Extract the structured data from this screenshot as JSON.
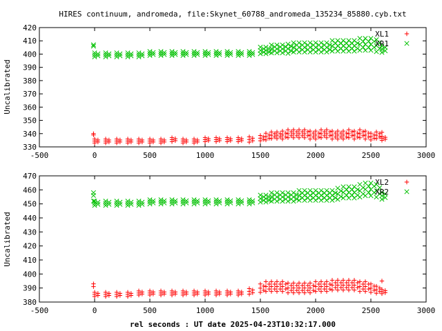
{
  "chart_data": [
    {
      "type": "scatter",
      "title": "HIRES continuum, andromeda, file:Skynet_60788_andromeda_135234_85880.cyb.txt",
      "ylabel": "Uncalibrated",
      "xlabel": "",
      "xlim": [
        -500,
        3000
      ],
      "ylim": [
        330,
        420
      ],
      "xticks": [
        "-500",
        "0",
        "500",
        "1000",
        "1500",
        "2000",
        "2500",
        "3000"
      ],
      "yticks": [
        "330",
        "340",
        "350",
        "360",
        "370",
        "380",
        "390",
        "400",
        "410",
        "420"
      ],
      "grid": false,
      "legend_position": "top-right",
      "series": [
        {
          "name": "XL1",
          "marker": "+",
          "color": "#ff0000",
          "x": [
            -10,
            -10,
            0,
            100,
            200,
            300,
            400,
            500,
            600,
            700,
            800,
            900,
            1000,
            1100,
            1200,
            1300,
            1400,
            1500,
            1550,
            1600,
            1650,
            1700,
            1750,
            1800,
            1850,
            1900,
            1950,
            2000,
            2050,
            2100,
            2150,
            2200,
            2250,
            2300,
            2350,
            2400,
            2450,
            2500,
            2550,
            2600,
            2600
          ],
          "y": [
            340,
            339,
            334,
            334,
            334,
            334,
            334,
            334,
            334,
            335,
            334,
            334,
            335,
            335,
            335,
            335,
            335,
            336,
            337,
            338,
            338,
            338,
            339,
            339,
            339,
            339,
            338,
            338,
            339,
            339,
            338,
            338,
            338,
            339,
            338,
            339,
            338,
            337,
            338,
            341,
            336
          ],
          "y_spread": [
            0,
            0,
            3,
            3,
            3,
            3,
            3,
            3,
            3,
            3,
            3,
            3,
            3,
            3,
            3,
            3,
            4,
            4,
            5,
            5,
            5,
            6,
            6,
            6,
            6,
            6,
            6,
            6,
            6,
            6,
            6,
            6,
            6,
            6,
            6,
            6,
            6,
            5,
            5,
            0,
            3
          ]
        },
        {
          "name": "XR1",
          "marker": "x",
          "color": "#00c000",
          "x": [
            -10,
            -10,
            0,
            100,
            200,
            300,
            400,
            500,
            600,
            700,
            800,
            900,
            1000,
            1100,
            1200,
            1300,
            1400,
            1500,
            1550,
            1600,
            1650,
            1700,
            1750,
            1800,
            1850,
            1900,
            1950,
            2000,
            2050,
            2100,
            2150,
            2200,
            2250,
            2300,
            2350,
            2400,
            2450,
            2500,
            2550,
            2600
          ],
          "y": [
            407,
            406,
            399,
            399,
            399,
            399,
            399,
            400,
            400,
            400,
            400,
            400,
            400,
            400,
            400,
            400,
            400,
            402,
            402,
            403,
            403,
            403,
            403,
            404,
            404,
            404,
            404,
            404,
            404,
            404,
            405,
            405,
            405,
            405,
            405,
            406,
            406,
            406,
            405,
            403
          ],
          "y_spread": [
            0,
            0,
            3,
            3,
            3,
            3,
            3,
            3,
            3,
            3,
            3,
            3,
            3,
            3,
            3,
            3,
            3,
            5,
            5,
            6,
            6,
            6,
            7,
            7,
            7,
            7,
            7,
            7,
            7,
            7,
            8,
            8,
            8,
            8,
            8,
            9,
            9,
            9,
            9,
            5
          ]
        }
      ]
    },
    {
      "type": "scatter",
      "title": "",
      "ylabel": "Uncalibrated",
      "xlabel": "rel seconds : UT date 2025-04-23T10:32:17.000",
      "xlim": [
        -500,
        3000
      ],
      "ylim": [
        380,
        470
      ],
      "xticks": [
        "-500",
        "0",
        "500",
        "1000",
        "1500",
        "2000",
        "2500",
        "3000"
      ],
      "yticks": [
        "380",
        "390",
        "400",
        "410",
        "420",
        "430",
        "440",
        "450",
        "460",
        "470"
      ],
      "grid": false,
      "legend_position": "top-right",
      "series": [
        {
          "name": "XL2",
          "marker": "+",
          "color": "#ff0000",
          "x": [
            -10,
            -10,
            0,
            100,
            200,
            300,
            400,
            500,
            600,
            700,
            800,
            900,
            1000,
            1100,
            1200,
            1300,
            1400,
            1500,
            1550,
            1600,
            1650,
            1700,
            1750,
            1800,
            1850,
            1900,
            1950,
            2000,
            2050,
            2100,
            2150,
            2200,
            2250,
            2300,
            2350,
            2400,
            2450,
            2500,
            2550,
            2600,
            2600
          ],
          "y": [
            393,
            391,
            385,
            385,
            385,
            385,
            386,
            386,
            386,
            386,
            386,
            386,
            386,
            386,
            386,
            386,
            387,
            389,
            390,
            390,
            390,
            390,
            389,
            389,
            389,
            389,
            389,
            390,
            390,
            390,
            391,
            391,
            391,
            391,
            391,
            390,
            390,
            389,
            388,
            395,
            387
          ],
          "y_spread": [
            0,
            0,
            3,
            3,
            3,
            3,
            3,
            3,
            3,
            3,
            3,
            3,
            3,
            3,
            3,
            3,
            4,
            6,
            7,
            7,
            7,
            7,
            7,
            7,
            7,
            7,
            7,
            7,
            7,
            7,
            7,
            7,
            7,
            7,
            7,
            7,
            7,
            6,
            5,
            0,
            3
          ]
        },
        {
          "name": "XR2",
          "marker": "x",
          "color": "#00c000",
          "x": [
            -10,
            -10,
            -10,
            0,
            100,
            200,
            300,
            400,
            500,
            600,
            700,
            800,
            900,
            1000,
            1100,
            1200,
            1300,
            1400,
            1500,
            1550,
            1600,
            1650,
            1700,
            1750,
            1800,
            1850,
            1900,
            1950,
            2000,
            2050,
            2100,
            2150,
            2200,
            2250,
            2300,
            2350,
            2400,
            2450,
            2500,
            2550,
            2600
          ],
          "y": [
            458,
            456,
            452,
            450,
            450,
            450,
            450,
            450,
            451,
            451,
            451,
            451,
            451,
            451,
            451,
            451,
            451,
            451,
            453,
            453,
            454,
            454,
            454,
            454,
            454,
            455,
            455,
            455,
            455,
            455,
            455,
            455,
            456,
            457,
            457,
            457,
            458,
            459,
            459,
            458,
            455
          ],
          "y_spread": [
            0,
            0,
            0,
            3,
            3,
            3,
            3,
            3,
            3,
            3,
            3,
            3,
            3,
            3,
            3,
            3,
            3,
            3,
            5,
            5,
            6,
            6,
            6,
            6,
            6,
            7,
            7,
            7,
            7,
            7,
            7,
            7,
            8,
            8,
            8,
            8,
            9,
            9,
            9,
            9,
            5
          ]
        }
      ]
    }
  ]
}
